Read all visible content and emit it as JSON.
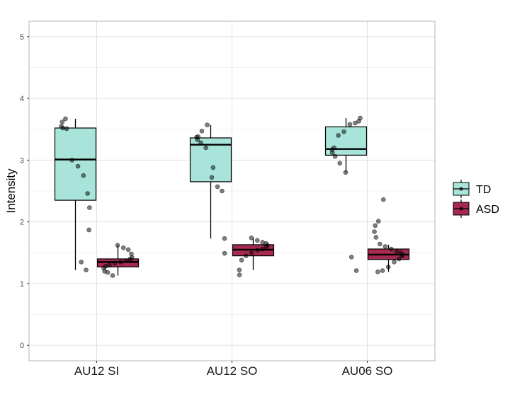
{
  "chart_data": {
    "type": "box",
    "title": "",
    "xlabel": "",
    "ylabel": "Intensity",
    "ylim": [
      -0.25,
      5.25
    ],
    "yticks": [
      "0",
      "1",
      "2",
      "3",
      "4",
      "5"
    ],
    "grid": true,
    "legend_position": "right",
    "categories": [
      "AU12 SI",
      "AU12 SO",
      "AU06 SO"
    ],
    "series": [
      {
        "name": "TD",
        "color": "#a8e4d9",
        "boxes": [
          {
            "category": "AU12 SI",
            "q1": 2.35,
            "median": 3.01,
            "q3": 3.52,
            "whisker_low": 1.22,
            "whisker_high": 3.67
          },
          {
            "category": "AU12 SO",
            "q1": 2.65,
            "median": 3.25,
            "q3": 3.36,
            "whisker_low": 1.73,
            "whisker_high": 3.57
          },
          {
            "category": "AU06 SO",
            "q1": 3.08,
            "median": 3.18,
            "q3": 3.54,
            "whisker_low": 2.8,
            "whisker_high": 3.68
          }
        ],
        "points": [
          [
            1.35,
            1.22,
            1.87,
            2.23,
            2.46,
            2.75,
            2.9,
            3.0,
            3.51,
            3.52,
            3.55,
            3.62,
            3.67
          ],
          [
            1.49,
            1.73,
            2.5,
            2.57,
            2.72,
            3.2,
            3.28,
            3.33,
            3.37,
            3.38,
            3.47,
            3.57,
            2.88
          ],
          [
            1.21,
            1.43,
            2.8,
            2.95,
            3.06,
            3.12,
            3.17,
            3.2,
            3.4,
            3.46,
            3.58,
            3.6,
            3.63,
            3.68
          ]
        ]
      },
      {
        "name": "ASD",
        "color": "#a52a50",
        "boxes": [
          {
            "category": "AU12 SI",
            "q1": 1.27,
            "median": 1.35,
            "q3": 1.4,
            "whisker_low": 1.13,
            "whisker_high": 1.62
          },
          {
            "category": "AU12 SO",
            "q1": 1.45,
            "median": 1.55,
            "q3": 1.63,
            "whisker_low": 1.22,
            "whisker_high": 1.74
          },
          {
            "category": "AU06 SO",
            "q1": 1.39,
            "median": 1.47,
            "q3": 1.56,
            "whisker_low": 1.19,
            "whisker_high": 1.63
          }
        ],
        "points": [
          [
            1.13,
            1.18,
            1.2,
            1.25,
            1.28,
            1.3,
            1.33,
            1.35,
            1.37,
            1.4,
            1.42,
            1.48,
            1.55,
            1.58,
            1.62
          ],
          [
            1.14,
            1.22,
            1.38,
            1.45,
            1.5,
            1.54,
            1.56,
            1.6,
            1.62,
            1.65,
            1.67,
            1.7,
            1.74
          ],
          [
            1.19,
            1.21,
            1.27,
            1.35,
            1.4,
            1.45,
            1.47,
            1.5,
            1.52,
            1.56,
            1.6,
            1.64,
            1.75,
            1.84,
            1.94,
            2.01,
            2.36
          ]
        ]
      }
    ]
  }
}
